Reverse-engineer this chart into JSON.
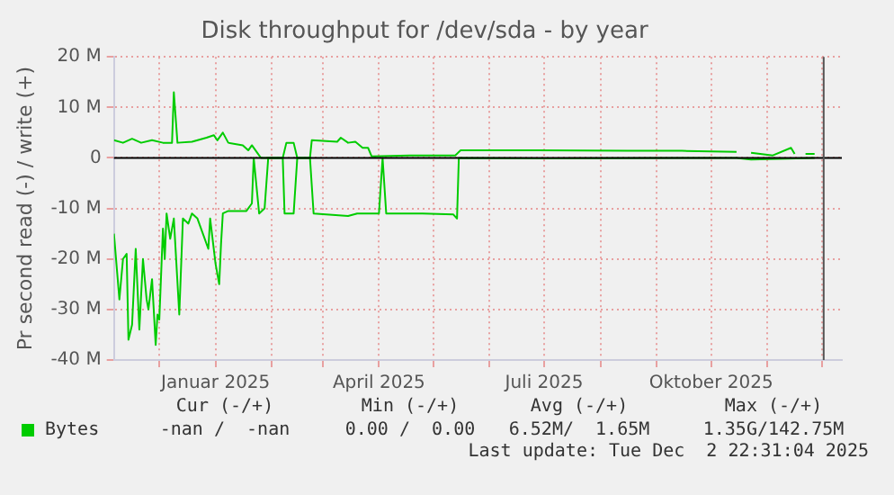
{
  "chart_data": {
    "type": "line",
    "title": "Disk throughput for /dev/sda - by year",
    "ylabel": "Pr second read (-) / write (+)",
    "xlim": [
      "2024-11-06",
      "2025-12-12"
    ],
    "xticks": [
      {
        "value": "2024-12-01",
        "label": null
      },
      {
        "value": "2025-01-01",
        "label": "Januar 2025"
      },
      {
        "value": "2025-02-01",
        "label": null
      },
      {
        "value": "2025-03-01",
        "label": null
      },
      {
        "value": "2025-04-01",
        "label": "April 2025"
      },
      {
        "value": "2025-05-01",
        "label": null
      },
      {
        "value": "2025-06-01",
        "label": null
      },
      {
        "value": "2025-07-01",
        "label": "Juli 2025"
      },
      {
        "value": "2025-08-01",
        "label": null
      },
      {
        "value": "2025-09-01",
        "label": null
      },
      {
        "value": "2025-10-01",
        "label": "Oktober 2025"
      },
      {
        "value": "2025-11-01",
        "label": null
      },
      {
        "value": "2025-12-01",
        "label": null
      }
    ],
    "ylim": [
      -40000000,
      20000000
    ],
    "yticks": [
      {
        "value": -40000000,
        "label": "-40 M"
      },
      {
        "value": -30000000,
        "label": "-30 M"
      },
      {
        "value": -20000000,
        "label": "-20 M"
      },
      {
        "value": -10000000,
        "label": "-10 M"
      },
      0,
      {
        "value": 10000000,
        "label": "10 M"
      },
      {
        "value": 20000000,
        "label": "20 M"
      }
    ],
    "grid": true,
    "legend": "bottom left",
    "ref_lines": [
      {
        "axis": "y",
        "value": 0,
        "color": "#000000"
      },
      {
        "axis": "x",
        "value": "2025-12-02",
        "color": "#555555"
      }
    ],
    "series": [
      {
        "name": "Bytes",
        "color": "#00cc00",
        "x": [
          "2024-11-06",
          "2024-11-11",
          "2024-11-16",
          "2024-11-21",
          "2024-11-27",
          "2024-12-03",
          "2024-12-08",
          "2024-12-09",
          "2024-12-11",
          "2024-12-19",
          "2024-12-27",
          "2024-12-31",
          "2025-01-02",
          "2025-01-05",
          "2025-01-08",
          "2025-01-16",
          "2025-01-19",
          "2025-01-21",
          "2025-01-24",
          "2025-01-26",
          "2025-02-07",
          "2025-02-09",
          "2025-02-13",
          "2025-02-15",
          "2025-02-22",
          "2025-02-23",
          "2025-03-09",
          "2025-03-11",
          "2025-03-15",
          "2025-03-19",
          "2025-03-23",
          "2025-03-26",
          "2025-03-28",
          "2025-04-18",
          "2025-05-13",
          "2025-05-16",
          "2025-06-27",
          "2025-08-16",
          "2025-09-15",
          "2025-10-15",
          "2025-10-20",
          "2025-10-23",
          "2025-11-04",
          "2025-11-14",
          "2025-11-16",
          "2025-11-20",
          "2025-11-22",
          "2025-11-27"
        ],
        "values": [
          3500000,
          3000000,
          3800000,
          3000000,
          3500000,
          3000000,
          3000000,
          13000000,
          3000000,
          3200000,
          4000000,
          4500000,
          3500000,
          5000000,
          3000000,
          2500000,
          1500000,
          2500000,
          1000000,
          0,
          0,
          3000000,
          3000000,
          0,
          0,
          3500000,
          3200000,
          4000000,
          3000000,
          3200000,
          2000000,
          2000000,
          300000,
          500000,
          500000,
          1500000,
          1500000,
          1400000,
          1400000,
          1200000,
          null,
          1000000,
          500000,
          2000000,
          800000,
          null,
          800000,
          800000
        ]
      },
      {
        "color": "#00cc00",
        "x": [
          "2024-11-06",
          "2024-11-09",
          "2024-11-11",
          "2024-11-13",
          "2024-11-14",
          "2024-11-16",
          "2024-11-18",
          "2024-11-20",
          "2024-11-22",
          "2024-11-24",
          "2024-11-25",
          "2024-11-27",
          "2024-11-29",
          "2024-11-30",
          "2024-12-01",
          "2024-12-03",
          "2024-12-04",
          "2024-12-05",
          "2024-12-07",
          "2024-12-09",
          "2024-12-12",
          "2024-12-14",
          "2024-12-17",
          "2024-12-19",
          "2024-12-22",
          "2024-12-25",
          "2024-12-28",
          "2024-12-29",
          "2025-01-01",
          "2025-01-03",
          "2025-01-04",
          "2025-01-05",
          "2025-01-08",
          "2025-01-18",
          "2025-01-21",
          "2025-01-22",
          "2025-01-25",
          "2025-01-28",
          "2025-01-30",
          "2025-02-07",
          "2025-02-08",
          "2025-02-13",
          "2025-02-15",
          "2025-02-22",
          "2025-02-24",
          "2025-03-15",
          "2025-03-20",
          "2025-04-01",
          "2025-04-03",
          "2025-04-05",
          "2025-04-25",
          "2025-05-12",
          "2025-05-14",
          "2025-05-15",
          "2025-06-30",
          "2025-10-15",
          "2025-10-23",
          "2025-11-27"
        ],
        "values": [
          -15000000,
          -28000000,
          -20000000,
          -19000000,
          -36000000,
          -33000000,
          -18000000,
          -34000000,
          -20000000,
          -28000000,
          -30000000,
          -24000000,
          -37000000,
          -31000000,
          -32000000,
          -14000000,
          -20000000,
          -11000000,
          -16000000,
          -12000000,
          -31000000,
          -12000000,
          -13000000,
          -11000000,
          -12000000,
          -15000000,
          -18000000,
          -12000000,
          -21000000,
          -25000000,
          -17000000,
          -11000000,
          -10500000,
          -10500000,
          -9000000,
          0,
          -11000000,
          -10000000,
          0,
          0,
          -11000000,
          -11000000,
          0,
          0,
          -11000000,
          -11500000,
          -11000000,
          -11000000,
          0,
          -11000000,
          -11000000,
          -11200000,
          -12000000,
          0,
          -100000,
          0,
          -300000,
          0
        ]
      }
    ],
    "annotations": [
      "Cur (-/+)",
      "Min (-/+)",
      "Avg (-/+)",
      "Max (-/+)",
      "-nan /  -nan",
      "0.00 /  0.00",
      "6.52M/  1.65M",
      "1.35G/142.75M",
      "Last update: Tue Dec  2 22:31:04 2025"
    ]
  }
}
